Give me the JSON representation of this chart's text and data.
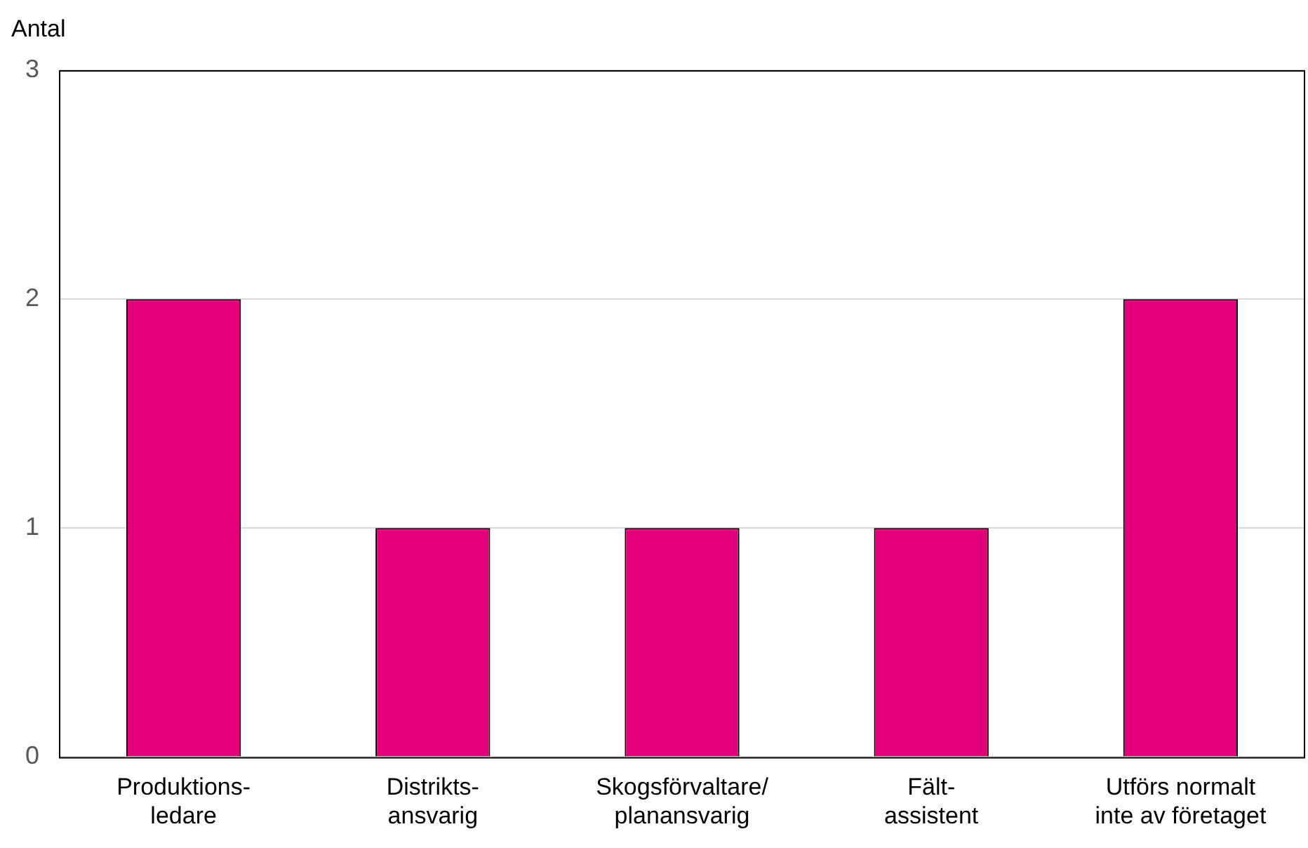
{
  "chart_data": {
    "type": "bar",
    "ylabel": "Antal",
    "categories": [
      "Produktions-\nledare",
      "Distrikts-\nansvarig",
      "Skogsförvaltare/\nplanansvarig",
      "Fält-\nassistent",
      "Utförs normalt\ninte av företaget"
    ],
    "values": [
      2,
      1,
      1,
      1,
      2
    ],
    "color": "#e2007a",
    "ylim": [
      0,
      3
    ],
    "yticks": [
      0,
      1,
      2,
      3
    ],
    "grid": "y",
    "legend": false
  }
}
